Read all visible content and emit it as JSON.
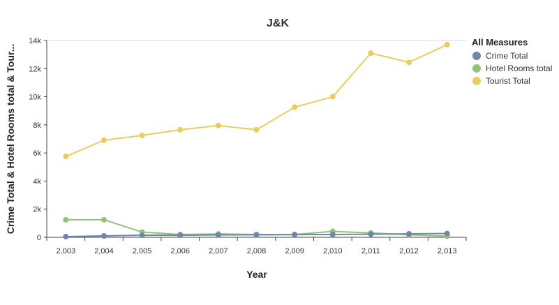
{
  "chart_data": {
    "type": "line",
    "title": "J&K",
    "xlabel": "Year",
    "ylabel": "Crime Total & Hotel Rooms total & Tour...",
    "categories": [
      "2,003",
      "2,004",
      "2,005",
      "2,006",
      "2,007",
      "2,008",
      "2,009",
      "2,010",
      "2,011",
      "2,012",
      "2,013"
    ],
    "ylim": [
      0,
      14000
    ],
    "yticks": [
      0,
      2000,
      4000,
      6000,
      8000,
      10000,
      12000,
      14000
    ],
    "ytick_labels": [
      "0",
      "2k",
      "4k",
      "6k",
      "8k",
      "10k",
      "12k",
      "14k"
    ],
    "grid": "top line only",
    "legend_title": "All Measures",
    "legend_position": "top-right",
    "series": [
      {
        "name": "Crime Total",
        "color": "#6f86ad",
        "values": [
          50,
          100,
          150,
          150,
          170,
          180,
          190,
          200,
          220,
          250,
          270
        ]
      },
      {
        "name": "Hotel Rooms total",
        "color": "#95c27a",
        "values": [
          1250,
          1250,
          370,
          200,
          240,
          200,
          200,
          420,
          310,
          180,
          80
        ]
      },
      {
        "name": "Tourist Total",
        "color": "#e9cd5c",
        "values": [
          5750,
          6900,
          7250,
          7650,
          7950,
          7650,
          9250,
          10000,
          13100,
          12450,
          13700
        ]
      }
    ]
  }
}
